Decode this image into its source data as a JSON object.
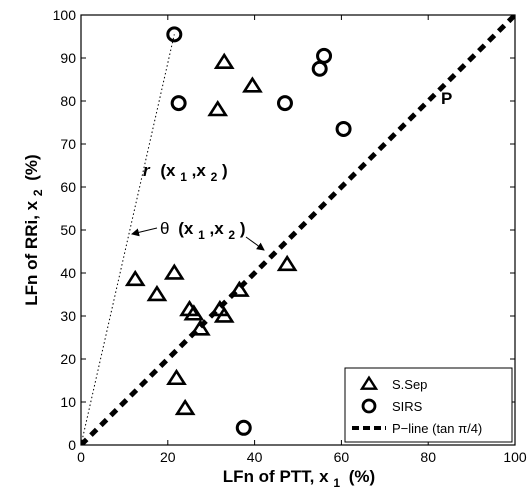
{
  "chart_data": {
    "type": "scatter",
    "xlabel": "LFn of PTT, x",
    "xlabel_sub": "1",
    "xlabel_unit": "(%)",
    "ylabel": "LFn of RRi, x",
    "ylabel_sub": "2",
    "ylabel_unit": "(%)",
    "xlim": [
      0,
      100
    ],
    "ylim": [
      0,
      100
    ],
    "xticks": [
      "0",
      "20",
      "40",
      "60",
      "80",
      "100"
    ],
    "yticks": [
      "0",
      "10",
      "20",
      "30",
      "40",
      "50",
      "60",
      "70",
      "80",
      "90",
      "100"
    ],
    "grid": false,
    "legend_position": "bottom-right",
    "series": [
      {
        "name": "S.Sep",
        "marker": "triangle",
        "points": [
          [
            33,
            89
          ],
          [
            39.5,
            83.5
          ],
          [
            31.5,
            78
          ],
          [
            47.5,
            42
          ],
          [
            21.5,
            40
          ],
          [
            12.5,
            38.5
          ],
          [
            17.5,
            35
          ],
          [
            36.5,
            36
          ],
          [
            25,
            31.5
          ],
          [
            26,
            30.5
          ],
          [
            32,
            31.5
          ],
          [
            33,
            30
          ],
          [
            27.5,
            27
          ],
          [
            22,
            15.5
          ],
          [
            24,
            8.5
          ]
        ]
      },
      {
        "name": "SIRS",
        "marker": "circle",
        "points": [
          [
            21.5,
            95.5
          ],
          [
            56,
            90.5
          ],
          [
            55,
            87.5
          ],
          [
            22.5,
            79.5
          ],
          [
            47,
            79.5
          ],
          [
            60.5,
            73.5
          ],
          [
            37.5,
            4
          ]
        ]
      },
      {
        "name": "P−line (tan π/4)",
        "style": "dashed-line",
        "line": [
          [
            0,
            0
          ],
          [
            100,
            100
          ]
        ]
      }
    ],
    "r_line": {
      "style": "dotted",
      "line": [
        [
          0,
          0
        ],
        [
          21.5,
          95.5
        ]
      ]
    },
    "annotations": {
      "p_label": "P",
      "r_label": "r",
      "r_args": "(x",
      "r_sub1": "1",
      "r_mid": ",x",
      "r_sub2": "2",
      "r_close": ")",
      "theta_label": "θ",
      "theta_args": "(x",
      "theta_sub1": "1",
      "theta_mid": ",x",
      "theta_sub2": "2",
      "theta_close": ")"
    }
  }
}
